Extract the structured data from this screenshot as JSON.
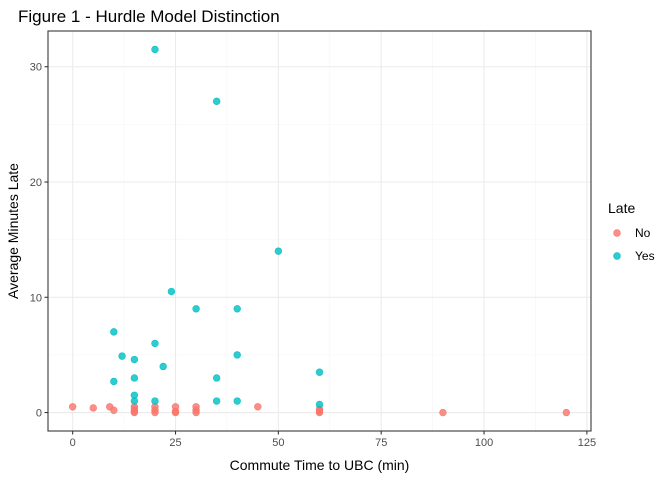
{
  "chart_data": {
    "type": "scatter",
    "title": "Figure 1 - Hurdle Model Distinction",
    "xlabel": "Commute Time to UBC (min)",
    "ylabel": "Average Minutes Late",
    "xlim": [
      -6,
      126
    ],
    "ylim": [
      -1.6,
      33.1
    ],
    "x_ticks": [
      0,
      25,
      50,
      75,
      100,
      125
    ],
    "y_ticks": [
      0,
      10,
      20,
      30
    ],
    "grid": true,
    "legend": {
      "title": "Late",
      "position": "right"
    },
    "series": [
      {
        "name": "No",
        "color": "#F8766D",
        "points": [
          {
            "x": 0,
            "y": 0.5
          },
          {
            "x": 5,
            "y": 0.4
          },
          {
            "x": 9,
            "y": 0.5
          },
          {
            "x": 10,
            "y": 0.2
          },
          {
            "x": 15,
            "y": 0.5
          },
          {
            "x": 15,
            "y": 0.3
          },
          {
            "x": 15,
            "y": 0.1
          },
          {
            "x": 15,
            "y": 0.0
          },
          {
            "x": 20,
            "y": 0.5
          },
          {
            "x": 20,
            "y": 0.2
          },
          {
            "x": 20,
            "y": 0.0
          },
          {
            "x": 25,
            "y": 0.5
          },
          {
            "x": 25,
            "y": 0.1
          },
          {
            "x": 25,
            "y": 0.0
          },
          {
            "x": 30,
            "y": 0.5
          },
          {
            "x": 30,
            "y": 0.2
          },
          {
            "x": 30,
            "y": 0.0
          },
          {
            "x": 45,
            "y": 0.5
          },
          {
            "x": 60,
            "y": 0.3
          },
          {
            "x": 60,
            "y": 0.1
          },
          {
            "x": 60,
            "y": 0.0
          },
          {
            "x": 90,
            "y": 0.0
          },
          {
            "x": 120,
            "y": 0.0
          }
        ]
      },
      {
        "name": "Yes",
        "color": "#00BFC4",
        "points": [
          {
            "x": 20,
            "y": 31.5
          },
          {
            "x": 35,
            "y": 27.0
          },
          {
            "x": 50,
            "y": 14.0
          },
          {
            "x": 24,
            "y": 10.5
          },
          {
            "x": 30,
            "y": 9.0
          },
          {
            "x": 40,
            "y": 9.0
          },
          {
            "x": 10,
            "y": 7.0
          },
          {
            "x": 20,
            "y": 6.0
          },
          {
            "x": 40,
            "y": 5.0
          },
          {
            "x": 12,
            "y": 4.9
          },
          {
            "x": 15,
            "y": 4.6
          },
          {
            "x": 22,
            "y": 4.0
          },
          {
            "x": 60,
            "y": 3.5
          },
          {
            "x": 35,
            "y": 3.0
          },
          {
            "x": 15,
            "y": 3.0
          },
          {
            "x": 10,
            "y": 2.7
          },
          {
            "x": 15,
            "y": 1.5
          },
          {
            "x": 15,
            "y": 1.0
          },
          {
            "x": 20,
            "y": 1.0
          },
          {
            "x": 35,
            "y": 1.0
          },
          {
            "x": 40,
            "y": 1.0
          },
          {
            "x": 60,
            "y": 0.7
          }
        ]
      }
    ]
  }
}
